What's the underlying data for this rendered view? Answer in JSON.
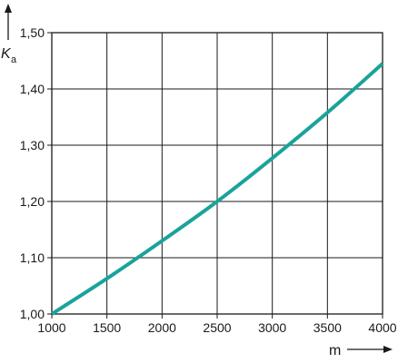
{
  "chart_data": {
    "type": "line",
    "title": "",
    "xlabel": "m",
    "ylabel": {
      "main": "K",
      "sub": "a"
    },
    "xlim": [
      1000,
      4000
    ],
    "ylim": [
      1.0,
      1.5
    ],
    "x_ticks": [
      {
        "value": 1000,
        "label": "1000"
      },
      {
        "value": 1500,
        "label": "1500"
      },
      {
        "value": 2000,
        "label": "2000"
      },
      {
        "value": 2500,
        "label": "2500"
      },
      {
        "value": 3000,
        "label": "3000"
      },
      {
        "value": 3500,
        "label": "3500"
      },
      {
        "value": 4000,
        "label": "4000"
      }
    ],
    "y_ticks": [
      {
        "value": 1.0,
        "label": "1,00"
      },
      {
        "value": 1.1,
        "label": "1,10"
      },
      {
        "value": 1.2,
        "label": "1,20"
      },
      {
        "value": 1.3,
        "label": "1,30"
      },
      {
        "value": 1.4,
        "label": "1,40"
      },
      {
        "value": 1.5,
        "label": "1,50"
      }
    ],
    "grid": true,
    "series": [
      {
        "color": "#1aa39a",
        "x": [
          1000,
          1500,
          2000,
          2500,
          3000,
          3500,
          4000
        ],
        "y": [
          1.0,
          1.063,
          1.13,
          1.2,
          1.277,
          1.358,
          1.445
        ]
      }
    ]
  }
}
